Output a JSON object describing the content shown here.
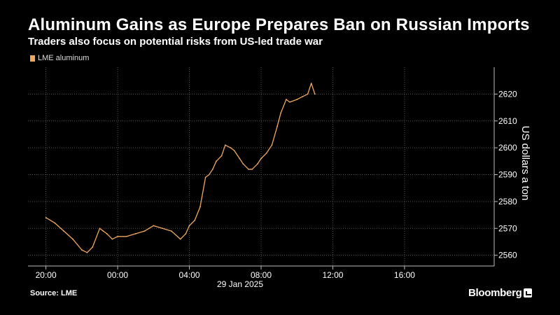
{
  "header": {
    "title": "Aluminum Gains as Europe Prepares Ban on Russian Imports",
    "subtitle": "Traders also focus on potential risks from US-led trade war"
  },
  "footer": {
    "source": "Source: LME",
    "brand": "Bloomberg"
  },
  "colors": {
    "background": "#000000",
    "series": "#f0a860",
    "grid": "#555555",
    "text": "#ffffff"
  },
  "chart_data": {
    "type": "line",
    "title": "Aluminum Gains as Europe Prepares Ban on Russian Imports",
    "subtitle": "Traders also focus on potential risks from US-led trade war",
    "ylabel": "US dollars a ton",
    "xlabel": "",
    "date_label": "29 Jan 2025",
    "x_ticks": [
      "20:00",
      "00:00",
      "04:00",
      "08:00",
      "12:00",
      "16:00"
    ],
    "x_tick_hours": [
      20,
      24,
      28,
      32,
      36,
      40
    ],
    "xlim_hours": [
      19,
      45
    ],
    "y_ticks": [
      2560,
      2570,
      2580,
      2590,
      2600,
      2610,
      2620
    ],
    "ylim": [
      2556,
      2630
    ],
    "grid": true,
    "legend_position": "top-left",
    "series": [
      {
        "name": "LME aluminum",
        "x_hours": [
          20.0,
          20.5,
          21.0,
          21.5,
          22.0,
          22.3,
          22.6,
          23.0,
          23.2,
          23.4,
          23.7,
          24.0,
          24.5,
          25.0,
          25.5,
          26.0,
          26.5,
          27.0,
          27.5,
          27.8,
          28.0,
          28.3,
          28.6,
          28.9,
          29.1,
          29.3,
          29.5,
          29.8,
          30.0,
          30.3,
          30.5,
          30.8,
          31.0,
          31.3,
          31.5,
          31.8,
          32.0,
          32.3,
          32.6,
          32.9,
          33.1,
          33.4,
          33.6,
          34.0,
          34.3,
          34.6,
          34.8,
          35.0
        ],
        "values": [
          2574,
          2572,
          2569,
          2566,
          2562,
          2561,
          2563,
          2570,
          2569,
          2568,
          2566,
          2567,
          2567,
          2568,
          2569,
          2571,
          2570,
          2569,
          2566,
          2568,
          2571,
          2573,
          2578,
          2589,
          2590,
          2592,
          2595,
          2597,
          2601,
          2600,
          2599,
          2596,
          2594,
          2592,
          2592,
          2594,
          2596,
          2598,
          2601,
          2608,
          2613,
          2618,
          2617,
          2618,
          2619,
          2620,
          2624,
          2620
        ]
      }
    ]
  }
}
